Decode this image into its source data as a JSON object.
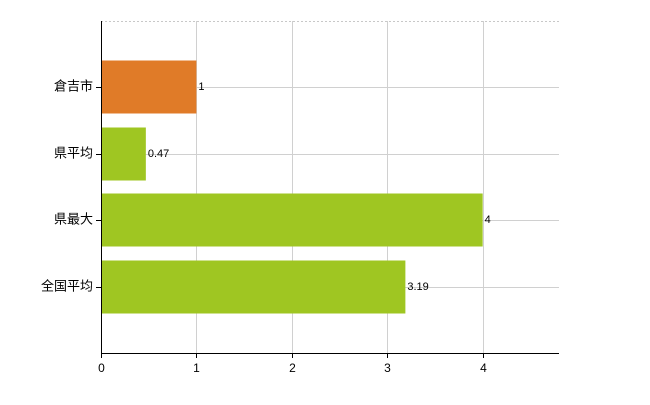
{
  "chart_data": {
    "type": "hbar",
    "categories": [
      "倉吉市",
      "県平均",
      "県最大",
      "全国平均"
    ],
    "values": [
      1,
      0.47,
      4,
      3.19
    ],
    "colors": [
      "#e07b28",
      "#9fc622",
      "#9fc622",
      "#9fc622"
    ],
    "xlim": [
      0,
      4.8
    ],
    "xticks": [
      0,
      1,
      2,
      3,
      4
    ],
    "grid": true
  }
}
